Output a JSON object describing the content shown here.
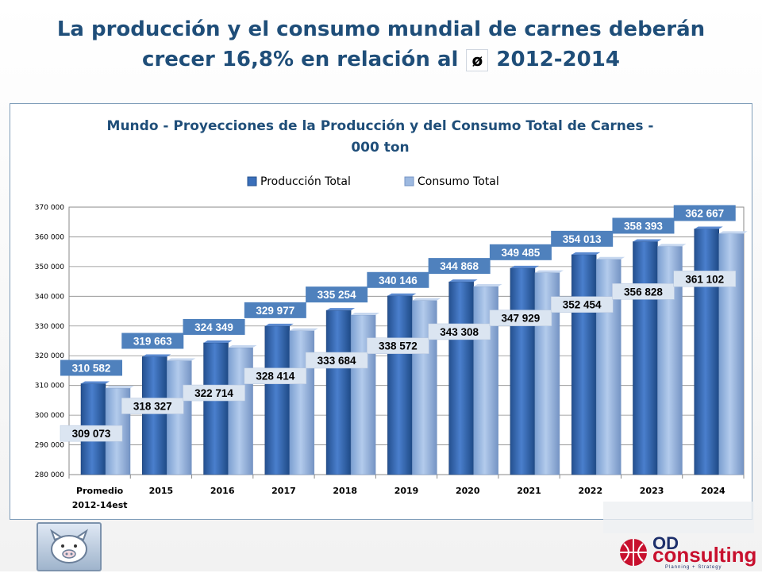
{
  "slide": {
    "title_line1": "La producción y el consumo mundial de carnes deberán",
    "title_line2_pre": "crecer 16,8% en relación al",
    "title_symbol": "ø",
    "title_line2_post": "2012-2014"
  },
  "chart_data": {
    "type": "bar",
    "title": "Mundo - Proyecciones de la Producción y del Consumo Total de Carnes -",
    "title_line2": "000 ton",
    "categories": [
      "Promedio 2012-14est",
      "2015",
      "2016",
      "2017",
      "2018",
      "2019",
      "2020",
      "2021",
      "2022",
      "2023",
      "2024"
    ],
    "series": [
      {
        "name": "Producción Total",
        "values": [
          310582,
          319663,
          324349,
          329977,
          335254,
          340146,
          344868,
          349485,
          354013,
          358393,
          362667
        ],
        "labels": [
          "310 582",
          "319 663",
          "324 349",
          "329 977",
          "335 254",
          "340 146",
          "344 868",
          "349 485",
          "354 013",
          "358 393",
          "362 667"
        ],
        "color": "#3a6fba",
        "label_bg": "#4f81bd"
      },
      {
        "name": "Consumo Total",
        "values": [
          309073,
          318327,
          322714,
          328414,
          333684,
          338572,
          343308,
          347929,
          352454,
          356828,
          361102
        ],
        "labels": [
          "309 073",
          "318 327",
          "322 714",
          "328 414",
          "333 684",
          "338 572",
          "343 308",
          "347 929",
          "352 454",
          "356 828",
          "361 102"
        ],
        "color": "#9db9e0",
        "label_bg": "#dbe5f1"
      }
    ],
    "y_ticks": [
      280000,
      290000,
      300000,
      310000,
      320000,
      330000,
      340000,
      350000,
      360000,
      370000
    ],
    "y_tick_labels": [
      "280 000",
      "290 000",
      "300 000",
      "310 000",
      "320 000",
      "330 000",
      "340 000",
      "350 000",
      "360 000",
      "370 000"
    ],
    "ylim": [
      280000,
      370000
    ],
    "legend_position": "top",
    "xlabel": "",
    "ylabel": ""
  },
  "logos": {
    "od": "OD",
    "consulting": "consulting",
    "tagline": "Planning + Strategy"
  }
}
